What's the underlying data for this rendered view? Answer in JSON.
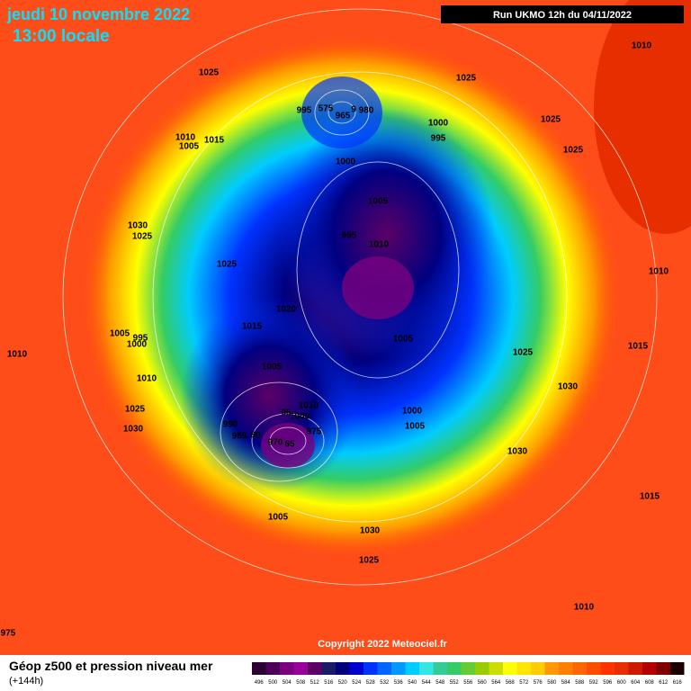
{
  "header": {
    "date": "jeudi 10 novembre 2022",
    "time": "13:00 locale",
    "run": "Run UKMO 12h du 04/11/2022"
  },
  "isobar_labels": [
    "1025",
    "1025",
    "1010",
    "1025",
    "1025",
    "995",
    "575",
    "965",
    "9",
    "980",
    "1000",
    "995",
    "1010",
    "1005",
    "1015",
    "1000",
    "1005",
    "995",
    "1010",
    "1030",
    "1025",
    "1025",
    "1010",
    "1020",
    "1015",
    "1005",
    "995",
    "1000",
    "1010",
    "1005",
    "1005",
    "1015",
    "1025",
    "1030",
    "1010",
    "1010",
    "1025",
    "1000",
    "1005",
    "1030",
    "990",
    "95",
    "1000",
    "975",
    "985",
    "80",
    "970",
    "65",
    "1030",
    "1015",
    "1005",
    "1030",
    "1025",
    "1010",
    "975"
  ],
  "copyright": "Copyright 2022 Meteociel.fr",
  "legend": {
    "title": "Géop z500 et pression niveau mer",
    "subtitle": "(+144h)",
    "values": [
      496,
      500,
      504,
      508,
      512,
      516,
      520,
      524,
      528,
      532,
      536,
      540,
      544,
      548,
      552,
      556,
      560,
      564,
      568,
      572,
      576,
      580,
      584,
      588,
      592,
      596,
      600,
      604,
      608,
      612,
      616
    ],
    "colors": [
      "#2b0033",
      "#4d0059",
      "#7a0080",
      "#990099",
      "#5c0066",
      "#1a1a66",
      "#000080",
      "#0000cc",
      "#0033ff",
      "#0066ff",
      "#0099ff",
      "#00ccff",
      "#33e6e6",
      "#33cc99",
      "#33cc66",
      "#66cc33",
      "#99cc00",
      "#ccdd00",
      "#ffff00",
      "#ffe600",
      "#ffcc00",
      "#ff9900",
      "#ff8000",
      "#ff6600",
      "#ff4d00",
      "#ff3300",
      "#e62e00",
      "#cc1a00",
      "#b30000",
      "#800000",
      "#1a0000"
    ]
  }
}
